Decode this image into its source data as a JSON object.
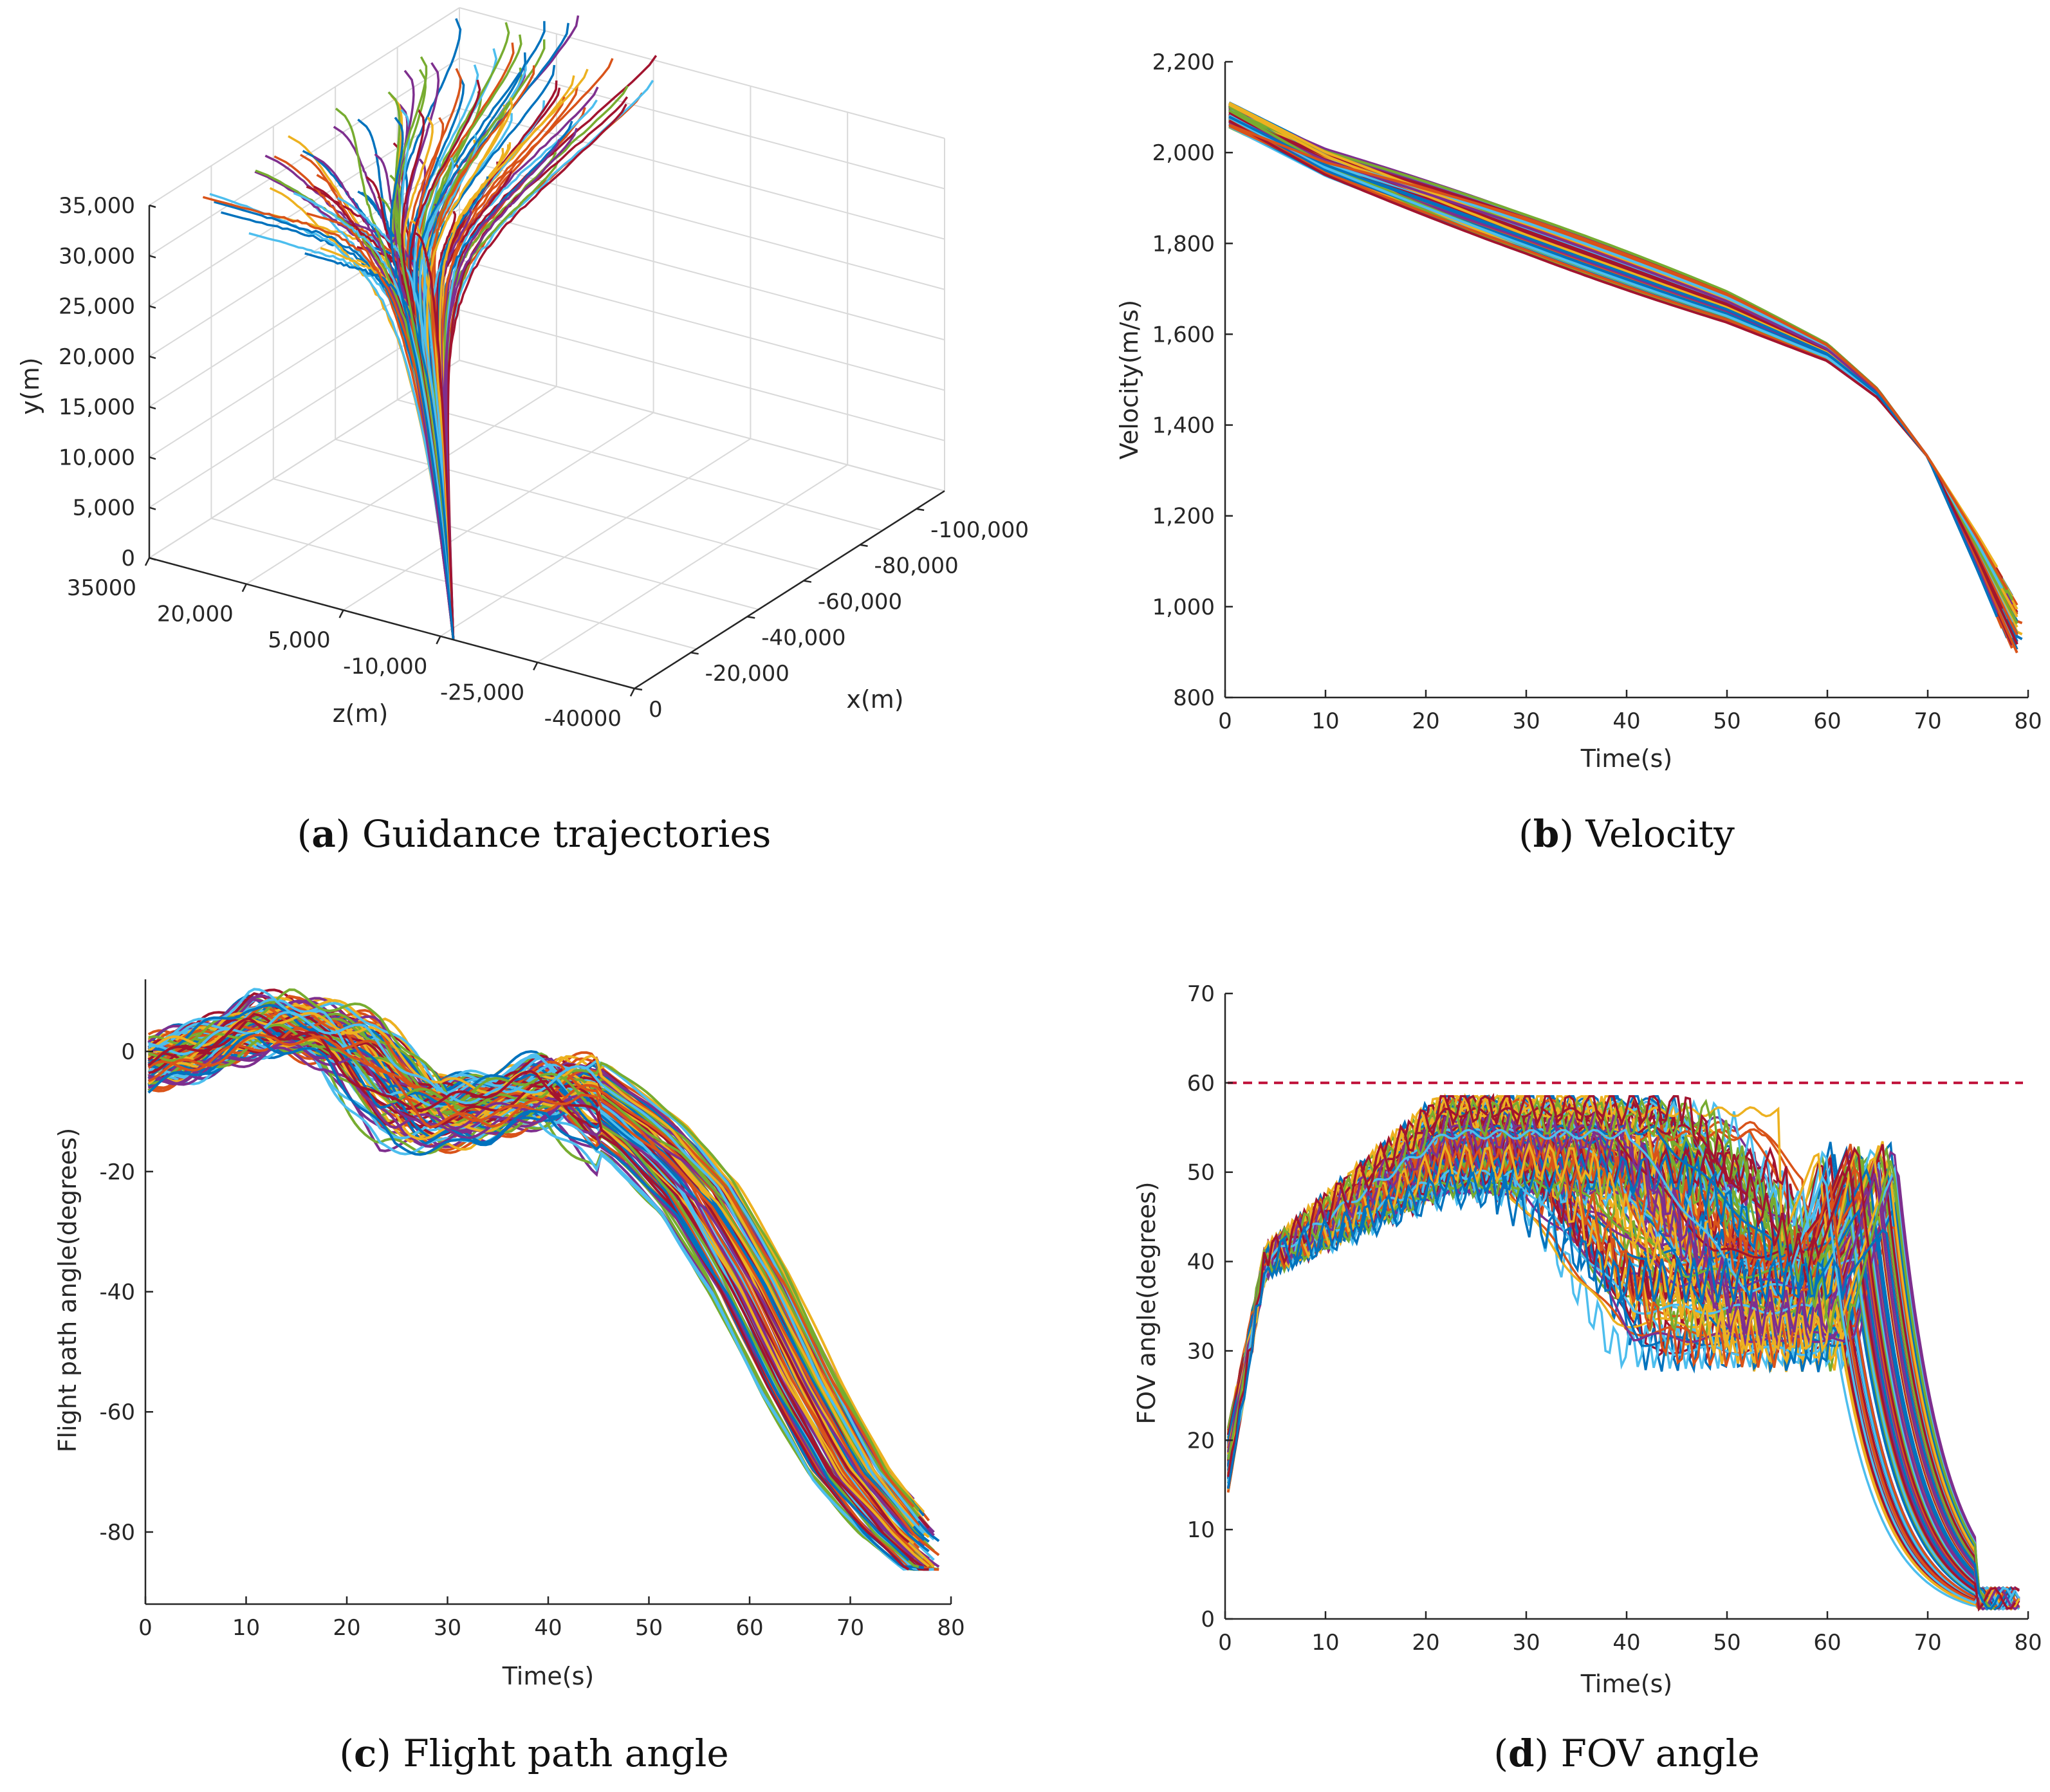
{
  "chart_data": [
    {
      "id": "a",
      "type": "line3d",
      "caption_letter": "a",
      "caption_text": "Guidance trajectories",
      "xlabel": "x(m)",
      "ylabel": "y(m)",
      "zlabel": "z(m)",
      "xticks": [
        "-100,000",
        "-80,000",
        "-60,000",
        "-40,000",
        "-20,000",
        "0"
      ],
      "yticks": [
        "35,000",
        "30,000",
        "25,000",
        "20,000",
        "15,000",
        "10,000",
        "5,000",
        "0"
      ],
      "zticks": [
        "35000",
        "20,000",
        "5,000",
        "-10,000",
        "-25,000",
        "-40000"
      ],
      "xlim": [
        -110000,
        0
      ],
      "ylim": [
        0,
        35000
      ],
      "zlim": [
        -40000,
        35000
      ],
      "n_series": 120,
      "description_series": {
        "start_x": [
          -110000,
          0
        ],
        "start_y": [
          33000,
          38000
        ],
        "end": [
          0,
          0,
          0
        ]
      }
    },
    {
      "id": "b",
      "type": "line",
      "caption_letter": "b",
      "caption_text": "Velocity",
      "xlabel": "Time(s)",
      "ylabel": "Velocity(m/s)",
      "xlim": [
        0,
        80
      ],
      "ylim": [
        800,
        2200
      ],
      "xticks": [
        "0",
        "10",
        "20",
        "30",
        "40",
        "50",
        "60",
        "70",
        "80"
      ],
      "yticks": [
        "800",
        "1,000",
        "1,200",
        "1,400",
        "1,600",
        "1,800",
        "2,000",
        "2,200"
      ],
      "n_series": 100,
      "series_template": {
        "t": [
          0,
          10,
          20,
          30,
          40,
          50,
          60,
          65,
          70,
          75,
          79
        ],
        "v": [
          2090,
          1980,
          1900,
          1820,
          1740,
          1660,
          1560,
          1470,
          1330,
          1130,
          960
        ]
      }
    },
    {
      "id": "c",
      "type": "line",
      "caption_letter": "c",
      "caption_text": "Flight path angle",
      "xlabel": "Time(s)",
      "ylabel": "Flight path angle(degrees)",
      "xlim": [
        0,
        80
      ],
      "ylim": [
        -92,
        12
      ],
      "xticks": [
        "0",
        "10",
        "20",
        "30",
        "40",
        "50",
        "60",
        "70",
        "80"
      ],
      "yticks": [
        "0",
        "-20",
        "-40",
        "-60",
        "-80"
      ],
      "n_series": 100,
      "series_template": {
        "t": [
          0,
          5,
          12,
          20,
          27,
          33,
          42,
          50,
          55,
          60,
          65,
          70,
          75,
          79
        ],
        "g": [
          -2,
          0,
          5,
          2,
          -10,
          -10,
          -5,
          -15,
          -24,
          -38,
          -55,
          -70,
          -80,
          -86
        ]
      }
    },
    {
      "id": "d",
      "type": "line",
      "caption_letter": "d",
      "caption_text": "FOV angle",
      "xlabel": "Time(s)",
      "ylabel": "FOV angle(degrees)",
      "xlim": [
        0,
        80
      ],
      "ylim": [
        0,
        70
      ],
      "xticks": [
        "0",
        "10",
        "20",
        "30",
        "40",
        "50",
        "60",
        "70",
        "80"
      ],
      "yticks": [
        "0",
        "10",
        "20",
        "30",
        "40",
        "50",
        "60",
        "70"
      ],
      "limit_line": {
        "y": 60,
        "style": "dashed",
        "color": "#c0143c"
      },
      "n_series": 120,
      "series_template": {
        "t": [
          0,
          4,
          10,
          20,
          30,
          40,
          50,
          58,
          60,
          65,
          70,
          75,
          79
        ],
        "f": [
          15,
          40,
          46,
          52,
          54,
          40,
          35,
          38,
          48,
          22,
          8,
          3,
          2
        ]
      }
    }
  ],
  "palette": [
    "#0072bd",
    "#d95319",
    "#edb120",
    "#7e2f8e",
    "#77ac30",
    "#4dbeee",
    "#a2142f"
  ]
}
